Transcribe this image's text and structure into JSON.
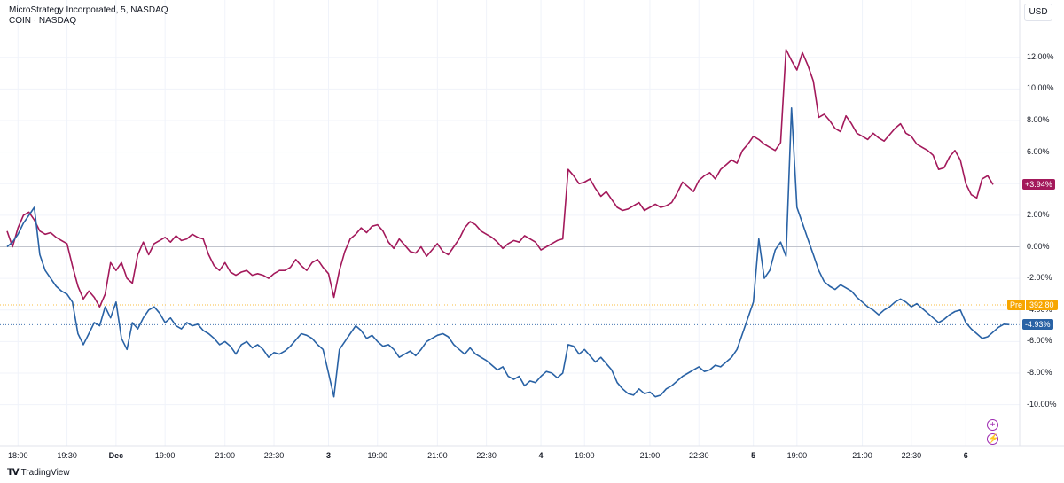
{
  "legend": {
    "main_series": "MicroStrategy Incorporated, 5, NASDAQ",
    "compare_series": "COIN · NASDAQ"
  },
  "currency_button": "USD",
  "pre_badge": {
    "label": "Pre",
    "value": "392.80"
  },
  "branding": {
    "logo_icon": "tradingview-logo-icon",
    "text": "TradingView"
  },
  "controls": [
    {
      "icon": "plus-circle-icon",
      "symbol": "+"
    },
    {
      "icon": "lightning-circle-icon",
      "symbol": "⚡"
    }
  ],
  "colors": {
    "mstr": "#a3195b",
    "coin": "#2962a5",
    "pre": "#f7a600",
    "zero": "#b2b5be"
  },
  "chart_data": {
    "type": "line",
    "yaxis_unit": "percent",
    "ylim": [
      -11.2,
      14.4
    ],
    "y_ticks": [
      "12.00%",
      "10.00%",
      "8.00%",
      "6.00%",
      "4.00%",
      "2.00%",
      "0.00%",
      "-2.00%",
      "-4.00%",
      "-6.00%",
      "-8.00%",
      "-10.00%"
    ],
    "y_tick_values": [
      12,
      10,
      8,
      6,
      4,
      2,
      0,
      -2,
      -4,
      -6,
      -8,
      -10
    ],
    "x_ticks": [
      {
        "label": "18:00",
        "i": 2,
        "bold": false
      },
      {
        "label": "19:30",
        "i": 11,
        "bold": false
      },
      {
        "label": "Dec",
        "i": 20,
        "bold": true
      },
      {
        "label": "19:00",
        "i": 29,
        "bold": false
      },
      {
        "label": "21:00",
        "i": 40,
        "bold": false
      },
      {
        "label": "22:30",
        "i": 49,
        "bold": false
      },
      {
        "label": "3",
        "i": 59,
        "bold": true
      },
      {
        "label": "19:00",
        "i": 68,
        "bold": false
      },
      {
        "label": "21:00",
        "i": 79,
        "bold": false
      },
      {
        "label": "22:30",
        "i": 88,
        "bold": false
      },
      {
        "label": "4",
        "i": 98,
        "bold": true
      },
      {
        "label": "19:00",
        "i": 106,
        "bold": false
      },
      {
        "label": "21:00",
        "i": 118,
        "bold": false
      },
      {
        "label": "22:30",
        "i": 127,
        "bold": false
      },
      {
        "label": "5",
        "i": 137,
        "bold": true
      },
      {
        "label": "19:00",
        "i": 145,
        "bold": false
      },
      {
        "label": "21:00",
        "i": 157,
        "bold": false
      },
      {
        "label": "22:30",
        "i": 166,
        "bold": false
      },
      {
        "label": "6",
        "i": 176,
        "bold": true
      }
    ],
    "series": [
      {
        "id": "mstr",
        "color": "#a3195b",
        "last_label": "+3.94%",
        "values": [
          1.0,
          0.0,
          1.2,
          2.0,
          2.2,
          1.7,
          1.0,
          0.8,
          0.9,
          0.6,
          0.4,
          0.2,
          -1.2,
          -2.5,
          -3.3,
          -2.8,
          -3.2,
          -3.8,
          -3.0,
          -1.0,
          -1.5,
          -1.0,
          -2.0,
          -2.3,
          -0.5,
          0.3,
          -0.5,
          0.2,
          0.4,
          0.6,
          0.3,
          0.7,
          0.4,
          0.5,
          0.8,
          0.6,
          0.5,
          -0.5,
          -1.2,
          -1.5,
          -1.0,
          -1.6,
          -1.8,
          -1.6,
          -1.5,
          -1.8,
          -1.7,
          -1.8,
          -2.0,
          -1.7,
          -1.5,
          -1.5,
          -1.3,
          -0.8,
          -1.2,
          -1.5,
          -1.0,
          -0.8,
          -1.3,
          -1.7,
          -3.2,
          -1.5,
          -0.3,
          0.5,
          0.8,
          1.2,
          0.9,
          1.3,
          1.4,
          1.0,
          0.3,
          -0.1,
          0.5,
          0.1,
          -0.3,
          -0.4,
          0.0,
          -0.6,
          -0.2,
          0.2,
          -0.3,
          -0.5,
          0.0,
          0.5,
          1.2,
          1.6,
          1.4,
          1.0,
          0.8,
          0.6,
          0.3,
          -0.1,
          0.2,
          0.4,
          0.3,
          0.7,
          0.5,
          0.3,
          -0.2,
          0.0,
          0.2,
          0.4,
          0.5,
          4.9,
          4.5,
          4.0,
          4.1,
          4.3,
          3.7,
          3.2,
          3.5,
          3.0,
          2.5,
          2.3,
          2.4,
          2.6,
          2.8,
          2.3,
          2.5,
          2.7,
          2.5,
          2.6,
          2.8,
          3.4,
          4.1,
          3.8,
          3.5,
          4.2,
          4.5,
          4.7,
          4.3,
          4.9,
          5.2,
          5.5,
          5.3,
          6.1,
          6.5,
          7.0,
          6.8,
          6.5,
          6.3,
          6.1,
          6.6,
          12.5,
          11.8,
          11.2,
          12.3,
          11.5,
          10.5,
          8.2,
          8.4,
          8.0,
          7.5,
          7.3,
          8.3,
          7.8,
          7.2,
          7.0,
          6.8,
          7.2,
          6.9,
          6.7,
          7.1,
          7.5,
          7.8,
          7.2,
          7.0,
          6.5,
          6.3,
          6.1,
          5.8,
          4.9,
          5.0,
          5.7,
          6.1,
          5.5,
          4.0,
          3.3,
          3.1,
          4.3,
          4.5,
          3.94
        ]
      },
      {
        "id": "coin",
        "color": "#2962a5",
        "last_label": "-4.93%",
        "values": [
          0.0,
          0.3,
          0.8,
          1.5,
          2.0,
          2.5,
          -0.5,
          -1.5,
          -2.0,
          -2.5,
          -2.8,
          -3.0,
          -3.5,
          -5.5,
          -6.2,
          -5.5,
          -4.8,
          -5.0,
          -3.8,
          -4.5,
          -3.5,
          -5.8,
          -6.5,
          -4.8,
          -5.2,
          -4.5,
          -4.0,
          -3.8,
          -4.2,
          -4.8,
          -4.5,
          -5.0,
          -5.2,
          -4.8,
          -5.0,
          -4.9,
          -5.3,
          -5.5,
          -5.8,
          -6.2,
          -6.0,
          -6.3,
          -6.8,
          -6.2,
          -6.0,
          -6.4,
          -6.2,
          -6.5,
          -7.0,
          -6.7,
          -6.8,
          -6.6,
          -6.3,
          -5.9,
          -5.5,
          -5.6,
          -5.8,
          -6.2,
          -6.5,
          -8.0,
          -9.5,
          -6.5,
          -6.0,
          -5.5,
          -5.0,
          -5.3,
          -5.8,
          -5.6,
          -6.0,
          -6.3,
          -6.2,
          -6.5,
          -7.0,
          -6.8,
          -6.6,
          -6.9,
          -6.5,
          -6.0,
          -5.8,
          -5.6,
          -5.5,
          -5.7,
          -6.2,
          -6.5,
          -6.8,
          -6.4,
          -6.8,
          -7.0,
          -7.2,
          -7.5,
          -7.8,
          -7.6,
          -8.2,
          -8.4,
          -8.2,
          -8.8,
          -8.5,
          -8.6,
          -8.2,
          -7.9,
          -8.0,
          -8.3,
          -8.0,
          -6.2,
          -6.3,
          -6.8,
          -6.5,
          -6.9,
          -7.3,
          -7.0,
          -7.4,
          -7.8,
          -8.6,
          -9.0,
          -9.3,
          -9.4,
          -9.0,
          -9.3,
          -9.2,
          -9.5,
          -9.4,
          -9.0,
          -8.8,
          -8.5,
          -8.2,
          -8.0,
          -7.8,
          -7.6,
          -7.9,
          -7.8,
          -7.5,
          -7.6,
          -7.3,
          -7.0,
          -6.5,
          -5.5,
          -4.5,
          -3.5,
          0.5,
          -2.0,
          -1.5,
          -0.2,
          0.3,
          -0.6,
          8.8,
          2.5,
          1.5,
          0.5,
          -0.5,
          -1.5,
          -2.2,
          -2.5,
          -2.7,
          -2.4,
          -2.6,
          -2.8,
          -3.2,
          -3.5,
          -3.8,
          -4.0,
          -4.3,
          -4.0,
          -3.8,
          -3.5,
          -3.3,
          -3.5,
          -3.8,
          -3.6,
          -3.9,
          -4.2,
          -4.5,
          -4.8,
          -4.6,
          -4.3,
          -4.1,
          -4.0,
          -4.8,
          -5.2,
          -5.5,
          -5.8,
          -5.7,
          -5.4,
          -5.1,
          -4.9,
          -4.93
        ]
      }
    ]
  }
}
